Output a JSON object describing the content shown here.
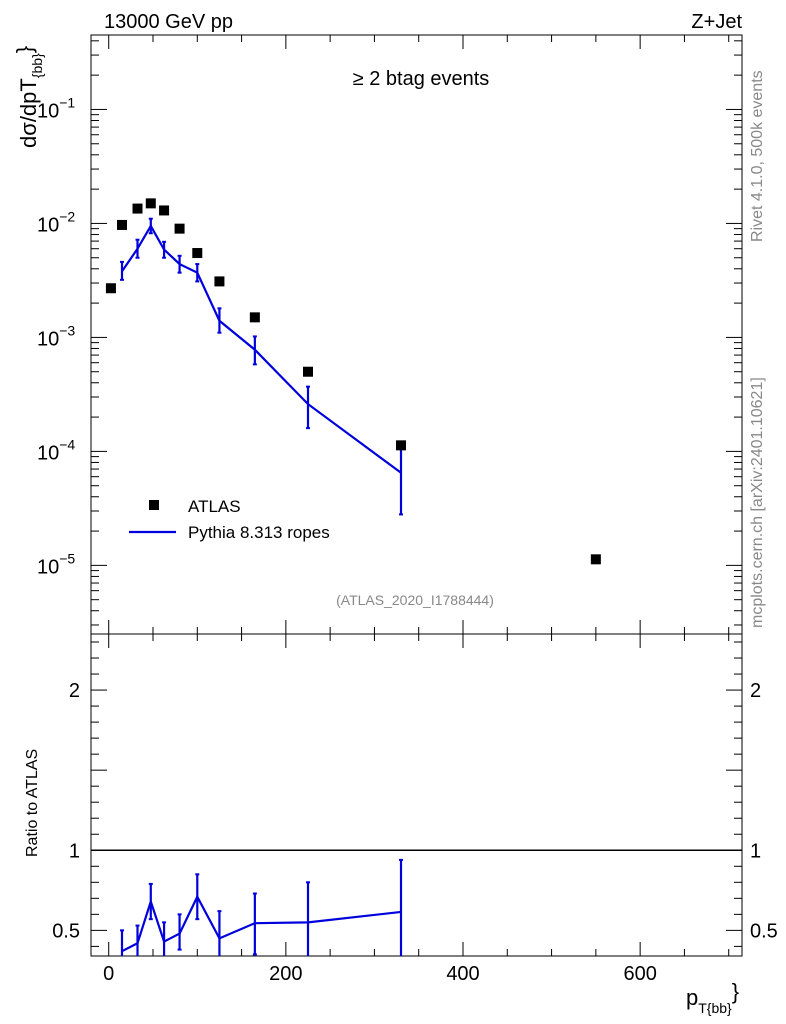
{
  "header": {
    "energy": "13000 GeV pp",
    "process": "Z+Jet",
    "side_rivet": "Rivet 4.1.0,  500k events",
    "side_mcplots": "mcplots.cern.ch [arXiv:2401.10621]"
  },
  "chart_data": [
    {
      "type": "scatter",
      "panel": "main",
      "title": "≥ 2 btag events",
      "annotation": "(ATLAS_2020_I1788444)",
      "ylabel": "dσ/dpT",
      "ylabel_sub": "{bb}",
      "yscale": "log",
      "xlim": [
        -20,
        715
      ],
      "ylim": [
        2.5e-06,
        0.45
      ],
      "yticks": [
        {
          "value": 1e-05,
          "label": "10",
          "exp": "−5"
        },
        {
          "value": 0.0001,
          "label": "10",
          "exp": "−4"
        },
        {
          "value": 0.001,
          "label": "10",
          "exp": "−3"
        },
        {
          "value": 0.01,
          "label": "10",
          "exp": "−2"
        },
        {
          "value": 0.1,
          "label": "10",
          "exp": "−1"
        }
      ],
      "legend": {
        "position": "lower-left",
        "entries": [
          "ATLAS",
          "Pythia 8.313 ropes"
        ]
      },
      "series": [
        {
          "name": "ATLAS",
          "style": "markers",
          "color": "#000000",
          "x": [
            2.5,
            15,
            32.5,
            47.5,
            62.5,
            80,
            100,
            125,
            165,
            225,
            330,
            550
          ],
          "y": [
            0.0027,
            0.0097,
            0.0135,
            0.015,
            0.013,
            0.009,
            0.0055,
            0.0031,
            0.0015,
            0.0005,
            0.000113,
            1.13e-05
          ]
        },
        {
          "name": "Pythia 8.313 ropes",
          "style": "line",
          "color": "#0000dd",
          "x": [
            15,
            32.5,
            47.5,
            62.5,
            80,
            100,
            125,
            165,
            225,
            330
          ],
          "y": [
            0.0038,
            0.006,
            0.0095,
            0.0059,
            0.0044,
            0.0037,
            0.0014,
            0.00078,
            0.00026,
            6.5e-05
          ],
          "err_low": [
            0.0032,
            0.005,
            0.0082,
            0.005,
            0.0037,
            0.0031,
            0.0011,
            0.00058,
            0.00016,
            2.8e-05
          ],
          "err_high": [
            0.0046,
            0.0072,
            0.011,
            0.0069,
            0.0052,
            0.0044,
            0.0018,
            0.00102,
            0.00037,
            0.00011
          ]
        }
      ]
    },
    {
      "type": "line",
      "panel": "ratio",
      "ylabel": "Ratio to ATLAS",
      "xlabel": "p",
      "xlabel_sub": "T{bb}",
      "xlim": [
        -20,
        715
      ],
      "ylim": [
        0.34,
        2.35
      ],
      "xticks": [
        0,
        200,
        400,
        600
      ],
      "xtick_labels": [
        "0",
        "200",
        "400",
        "600"
      ],
      "yticks": [
        0.5,
        1,
        2
      ],
      "ytick_labels": [
        "0.5",
        "1",
        "2"
      ],
      "reference": 1,
      "series": [
        {
          "name": "Pythia 8.313 ropes",
          "color": "#0000dd",
          "x": [
            15,
            32.5,
            47.5,
            62.5,
            80,
            100,
            125,
            165,
            225,
            330
          ],
          "y": [
            0.37,
            0.42,
            0.68,
            0.43,
            0.48,
            0.71,
            0.45,
            0.545,
            0.55,
            0.615
          ],
          "err_low": [
            0.25,
            0.33,
            0.57,
            0.33,
            0.38,
            0.57,
            0.33,
            0.35,
            0.32,
            0.29
          ],
          "err_high": [
            0.5,
            0.53,
            0.79,
            0.55,
            0.6,
            0.85,
            0.62,
            0.73,
            0.8,
            0.94
          ]
        }
      ]
    }
  ]
}
